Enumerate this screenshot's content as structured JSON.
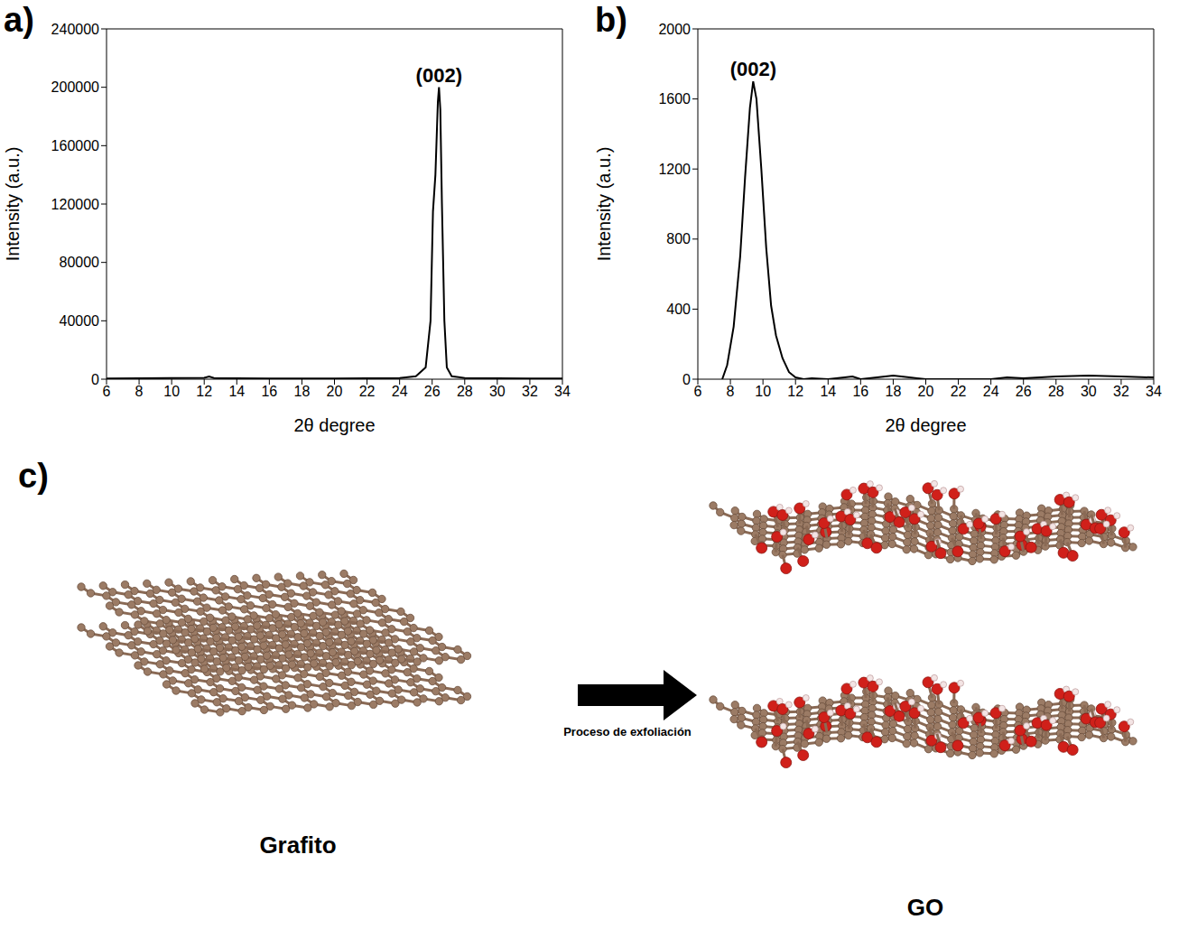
{
  "chart_data": [
    {
      "type": "line",
      "title": "a)",
      "xlabel": "2θ degree",
      "ylabel": "Intensity (a.u.)",
      "color": "#000000",
      "grid": false,
      "x": [
        6,
        8,
        10,
        12,
        12.3,
        12.6,
        14,
        16,
        18,
        20,
        22,
        24,
        25,
        25.6,
        25.9,
        26.05,
        26.2,
        26.35,
        26.42,
        26.5,
        26.6,
        26.75,
        26.9,
        27.2,
        28,
        30,
        32,
        34
      ],
      "values": [
        500,
        600,
        700,
        900,
        1800,
        800,
        600,
        500,
        500,
        500,
        600,
        800,
        2000,
        8000,
        40000,
        115000,
        140000,
        190000,
        200000,
        185000,
        120000,
        40000,
        8000,
        2000,
        800,
        600,
        500,
        500
      ],
      "xlim": [
        6,
        34
      ],
      "xticks": [
        6,
        8,
        10,
        12,
        14,
        16,
        18,
        20,
        22,
        24,
        26,
        28,
        30,
        32,
        34
      ],
      "ylim": [
        0,
        240000
      ],
      "yticks": [
        0,
        40000,
        80000,
        120000,
        160000,
        200000,
        240000
      ],
      "annotations": [
        {
          "text": "(002)",
          "x": 26.42,
          "y": 200000
        }
      ]
    },
    {
      "type": "line",
      "title": "b)",
      "xlabel": "2θ degree",
      "ylabel": "Intensity (a.u.)",
      "color": "#000000",
      "grid": false,
      "x": [
        7.5,
        7.8,
        8.2,
        8.6,
        8.9,
        9.2,
        9.4,
        9.6,
        9.9,
        10.2,
        10.5,
        10.8,
        11.2,
        11.6,
        12,
        12.5,
        13,
        14,
        15.5,
        16,
        18,
        19,
        20,
        22,
        24,
        25,
        26,
        28,
        30,
        32,
        34
      ],
      "values": [
        0,
        80,
        300,
        700,
        1150,
        1550,
        1700,
        1600,
        1200,
        750,
        420,
        250,
        120,
        40,
        10,
        0,
        5,
        0,
        15,
        0,
        20,
        10,
        0,
        0,
        0,
        10,
        5,
        15,
        20,
        15,
        10
      ],
      "xlim": [
        6,
        34
      ],
      "xticks": [
        6,
        8,
        10,
        12,
        14,
        16,
        18,
        20,
        22,
        24,
        26,
        28,
        30,
        32,
        34
      ],
      "ylim": [
        0,
        2000
      ],
      "yticks": [
        0,
        400,
        800,
        1200,
        1600,
        2000
      ],
      "annotations": [
        {
          "text": "(002)",
          "x": 9.4,
          "y": 1700
        }
      ]
    }
  ],
  "diagram": {
    "title": "c)",
    "left_label": "Grafito",
    "right_label": "GO",
    "arrow_label": "Proceso de exfoliación"
  }
}
